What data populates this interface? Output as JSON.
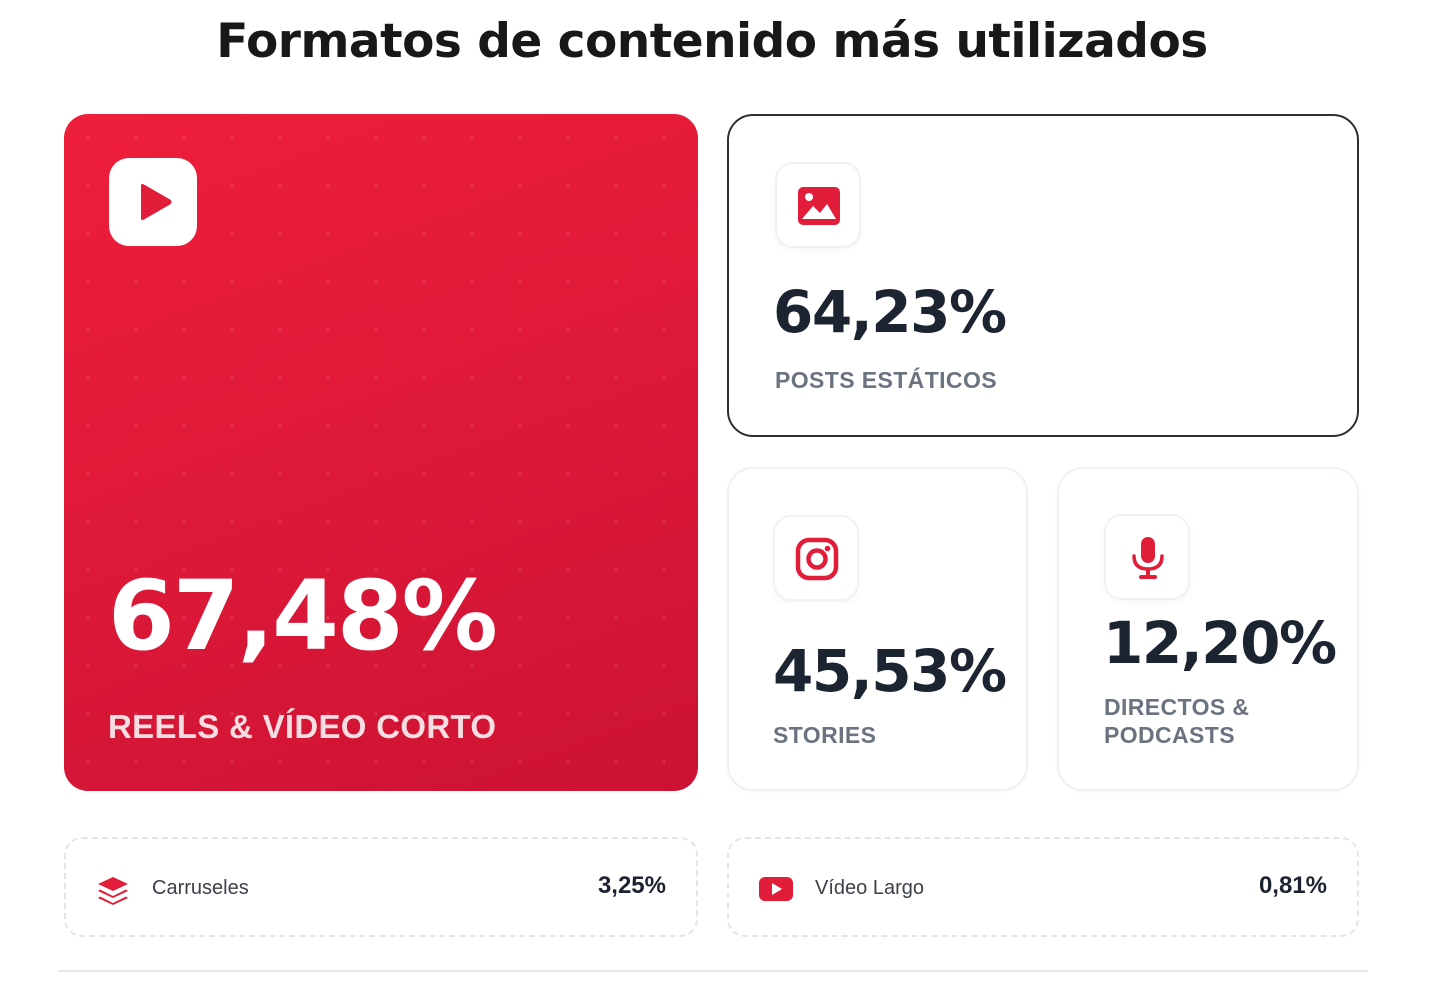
{
  "title": "Formatos de contenido más utilizados",
  "colors": {
    "accent": "#e11d3a",
    "text": "#1c2432",
    "muted": "#6b7280"
  },
  "formats": {
    "reels": {
      "value": "67,48%",
      "label": "REELS & VÍDEO CORTO",
      "icon": "play-icon"
    },
    "posts": {
      "value": "64,23%",
      "label": "POSTS ESTÁTICOS",
      "icon": "image-icon"
    },
    "stories": {
      "value": "45,53%",
      "label": "STORIES",
      "icon": "instagram-icon"
    },
    "directos": {
      "value": "12,20%",
      "label_line1": "DIRECTOS &",
      "label_line2": "PODCASTS",
      "icon": "microphone-icon"
    }
  },
  "rows": {
    "carruseles": {
      "label": "Carruseles",
      "value": "3,25%",
      "icon": "layers-icon"
    },
    "video_largo": {
      "label": "Vídeo Largo",
      "value": "0,81%",
      "icon": "youtube-icon"
    }
  }
}
